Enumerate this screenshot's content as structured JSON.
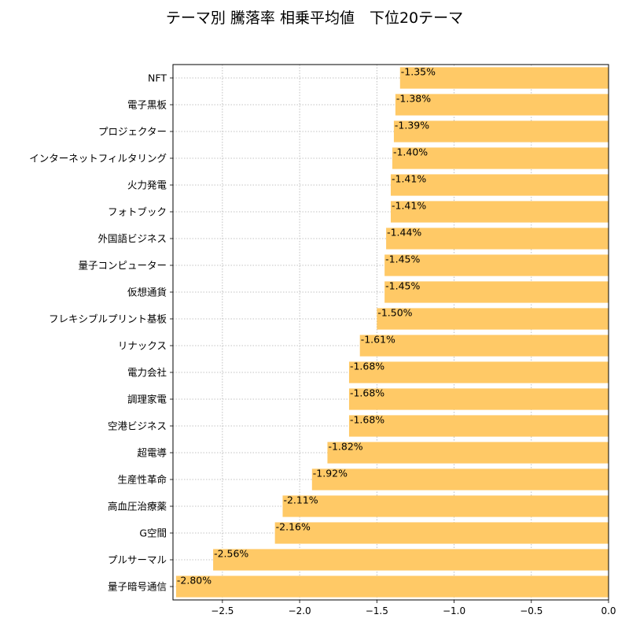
{
  "chart_data": {
    "type": "bar",
    "orientation": "horizontal",
    "title": "テーマ別 騰落率 相乗平均値　下位20テーマ",
    "xlabel": "",
    "ylabel": "",
    "xlim": [
      -2.82,
      0.0
    ],
    "x_ticks": [
      -2.5,
      -2.0,
      -1.5,
      -1.0,
      -0.5,
      0.0
    ],
    "x_tick_labels": [
      "−2.5",
      "−2.0",
      "−1.5",
      "−1.0",
      "−0.5",
      "0.0"
    ],
    "grid": true,
    "bar_color": "#ffc966",
    "categories": [
      "NFT",
      "電子黒板",
      "プロジェクター",
      "インターネットフィルタリング",
      "火力発電",
      "フォトブック",
      "外国語ビジネス",
      "量子コンピューター",
      "仮想通貨",
      "フレキシブルプリント基板",
      "リナックス",
      "電力会社",
      "調理家電",
      "空港ビジネス",
      "超電導",
      "生産性革命",
      "高血圧治療薬",
      "G空間",
      "プルサーマル",
      "量子暗号通信"
    ],
    "values": [
      -1.35,
      -1.38,
      -1.39,
      -1.4,
      -1.41,
      -1.41,
      -1.44,
      -1.45,
      -1.45,
      -1.5,
      -1.61,
      -1.68,
      -1.68,
      -1.68,
      -1.82,
      -1.92,
      -2.11,
      -2.16,
      -2.56,
      -2.8
    ],
    "data_labels": [
      "-1.35%",
      "-1.38%",
      "-1.39%",
      "-1.40%",
      "-1.41%",
      "-1.41%",
      "-1.44%",
      "-1.45%",
      "-1.45%",
      "-1.50%",
      "-1.61%",
      "-1.68%",
      "-1.68%",
      "-1.68%",
      "-1.82%",
      "-1.92%",
      "-2.11%",
      "-2.16%",
      "-2.56%",
      "-2.80%"
    ]
  }
}
